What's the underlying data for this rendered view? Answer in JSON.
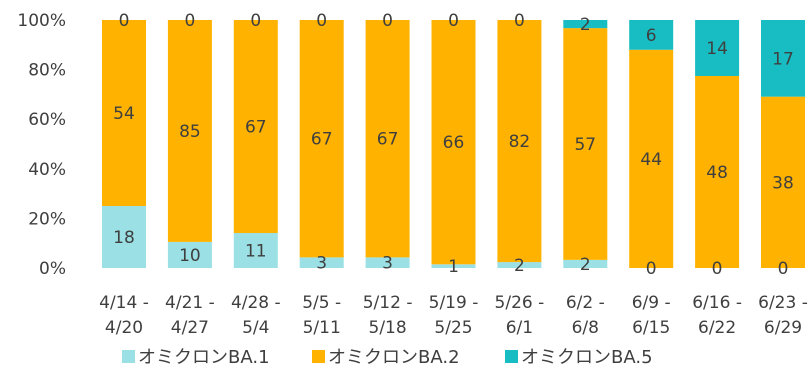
{
  "chart_data": {
    "type": "bar",
    "stacked": true,
    "normalized": true,
    "categories": [
      [
        "4/14 -",
        "4/20"
      ],
      [
        "4/21 -",
        "4/27"
      ],
      [
        "4/28 -",
        "5/4"
      ],
      [
        "5/5 -",
        "5/11"
      ],
      [
        "5/12 -",
        "5/18"
      ],
      [
        "5/19 -",
        "5/25"
      ],
      [
        "5/26 -",
        "6/1"
      ],
      [
        "6/2 -",
        "6/8"
      ],
      [
        "6/9 -",
        "6/15"
      ],
      [
        "6/16 -",
        "6/22"
      ],
      [
        "6/23 -",
        "6/29"
      ]
    ],
    "series": [
      {
        "name": "オミクロンBA.1",
        "color": "#9ae0e4",
        "values": [
          18,
          10,
          11,
          3,
          3,
          1,
          2,
          2,
          0,
          0,
          0
        ]
      },
      {
        "name": "オミクロンBA.2",
        "color": "#ffb300",
        "values": [
          54,
          85,
          67,
          67,
          67,
          66,
          82,
          57,
          44,
          48,
          38
        ]
      },
      {
        "name": "オミクロンBA.5",
        "color": "#17bdc2",
        "values": [
          0,
          0,
          0,
          0,
          0,
          0,
          0,
          2,
          6,
          14,
          17
        ]
      }
    ],
    "y_ticks": [
      "0%",
      "20%",
      "40%",
      "60%",
      "80%",
      "100%"
    ],
    "ylim": [
      0,
      100
    ],
    "legend_position": "bottom",
    "grid": false
  }
}
